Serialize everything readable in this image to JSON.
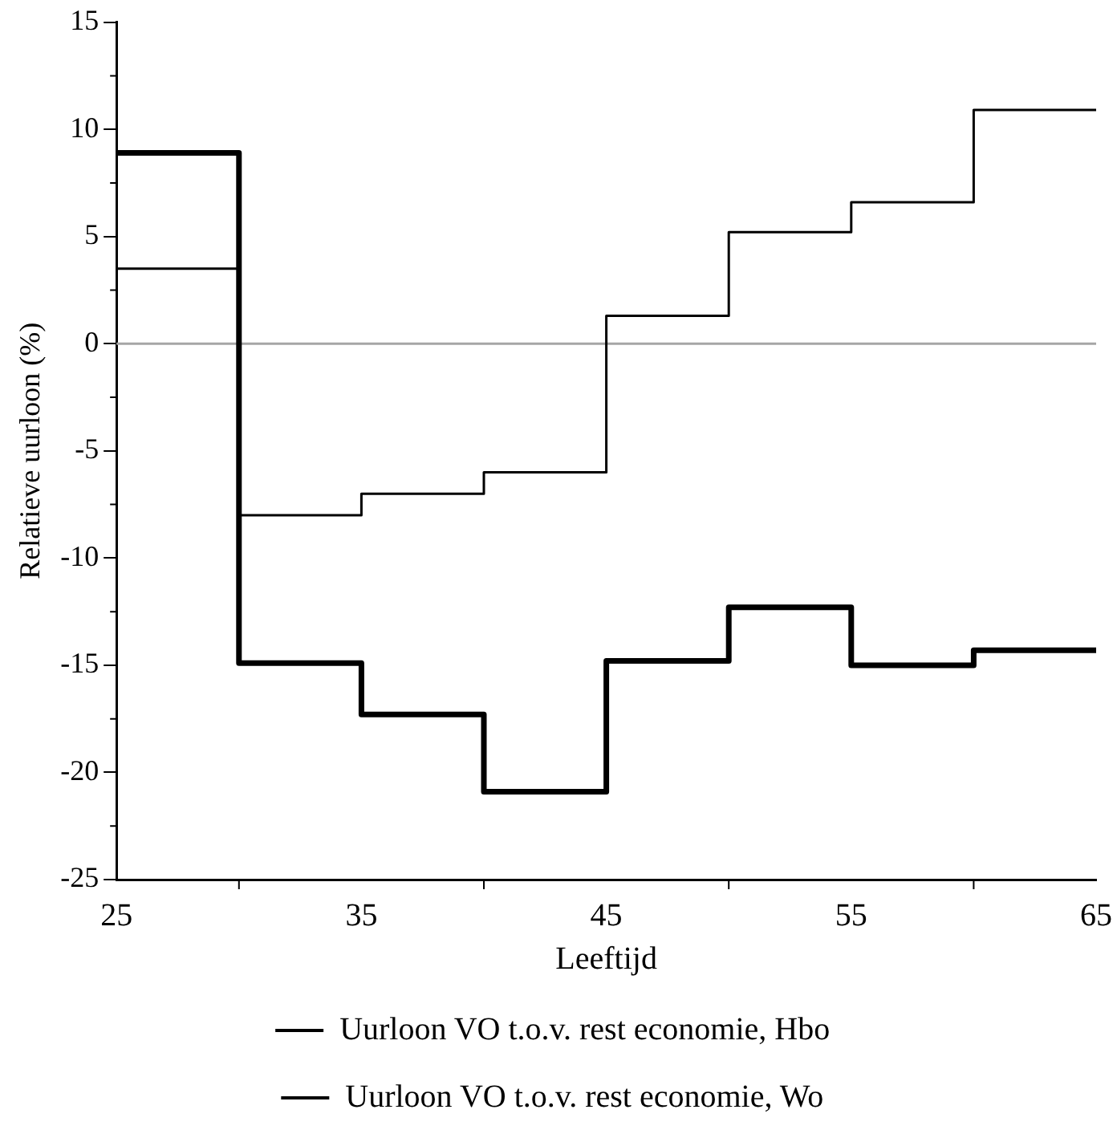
{
  "chart_data": {
    "type": "step",
    "xlabel": "Leeftijd",
    "ylabel": "Relatieve uurloon (%)",
    "x": [
      25,
      30,
      35,
      40,
      45,
      50,
      55,
      60,
      65
    ],
    "series": [
      {
        "name": "Uurloon VO t.o.v. rest economie, Hbo",
        "color": "#000000",
        "values": [
          3.5,
          -8,
          -7,
          -6,
          1.3,
          5.2,
          6.6,
          10.9,
          10.9
        ]
      },
      {
        "name": "Uurloon VO t.o.v. rest economie, Wo",
        "color": "#000000",
        "values": [
          8.9,
          -14.9,
          -17.3,
          -20.9,
          -14.8,
          -12.3,
          -15,
          -14.3,
          -14.3
        ]
      }
    ],
    "xlim": [
      25,
      65
    ],
    "xticks": [
      25,
      35,
      45,
      55,
      65
    ],
    "ylim": [
      -25,
      15
    ],
    "yticks": [
      -25,
      -20,
      -15,
      -10,
      -5,
      0,
      5,
      10,
      15
    ],
    "ref_lines": [
      {
        "axis": "y",
        "value": 0,
        "color": "#a6a6a6"
      }
    ],
    "grid": false,
    "legend": "bottom",
    "line_style": "solid",
    "marker": "none"
  }
}
